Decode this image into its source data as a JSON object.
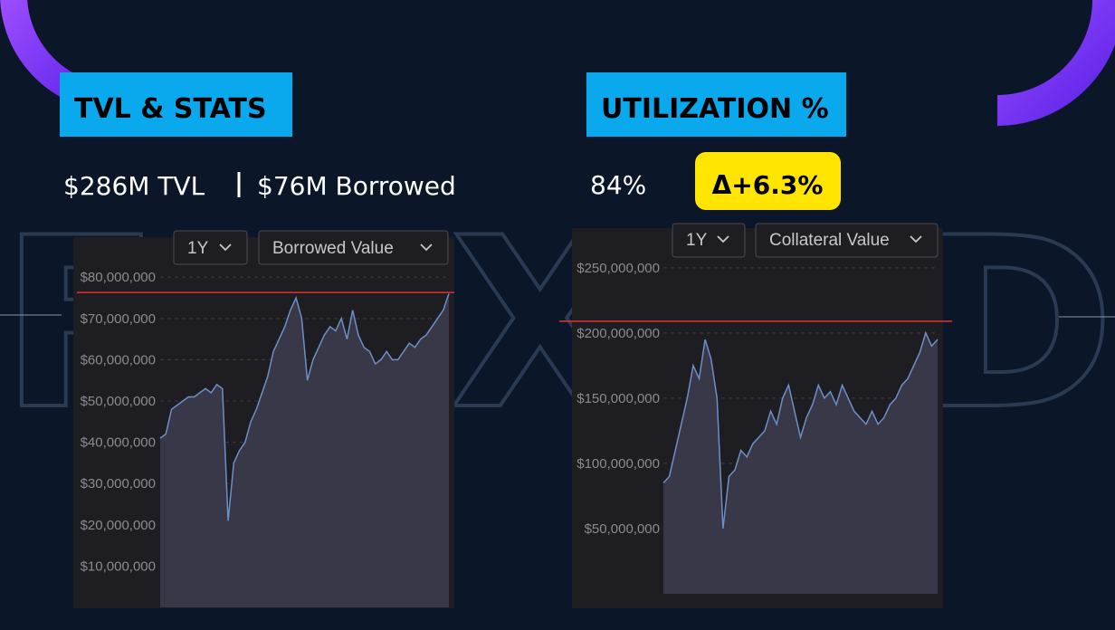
{
  "watermark": "FXD",
  "left": {
    "heading": "TVL & STATS",
    "stats": [
      "$286M TVL",
      "$76M Borrowed"
    ]
  },
  "right": {
    "heading": "UTILIZATION %",
    "stat": "84%",
    "badge": "Δ+6.3%"
  },
  "chart_data": [
    {
      "type": "area",
      "range": "1Y",
      "metric": "Borrowed Value",
      "color": "#6d8fc8",
      "ylim": [
        0,
        84000000
      ],
      "yticks": [
        {
          "value": 10000000,
          "label": "$10,000,000"
        },
        {
          "value": 20000000,
          "label": "$20,000,000"
        },
        {
          "value": 30000000,
          "label": "$30,000,000"
        },
        {
          "value": 40000000,
          "label": "$40,000,000"
        },
        {
          "value": 50000000,
          "label": "$50,000,000"
        },
        {
          "value": 60000000,
          "label": "$60,000,000"
        },
        {
          "value": 70000000,
          "label": "$70,000,000"
        },
        {
          "value": 80000000,
          "label": "$80,000,000"
        }
      ],
      "grid": true,
      "hline": 76300000,
      "hline_color": "#e0332f",
      "values": [
        41000000,
        42000000,
        48000000,
        49000000,
        50000000,
        51000000,
        51000000,
        52000000,
        53000000,
        52000000,
        54000000,
        53000000,
        21000000,
        35000000,
        38000000,
        40000000,
        45000000,
        48000000,
        52000000,
        56000000,
        62000000,
        65000000,
        68000000,
        72000000,
        75000000,
        70000000,
        55000000,
        60000000,
        63000000,
        66000000,
        68000000,
        67000000,
        70000000,
        65000000,
        72000000,
        66000000,
        63000000,
        62000000,
        59000000,
        60000000,
        62000000,
        60000000,
        60000000,
        62000000,
        64000000,
        63000000,
        65000000,
        66000000,
        68000000,
        70000000,
        72000000,
        76000000
      ]
    },
    {
      "type": "area",
      "range": "1Y",
      "metric": "Collateral Value",
      "color": "#6d8fc8",
      "ylim": [
        0,
        270000000
      ],
      "yticks": [
        {
          "value": 50000000,
          "label": "$50,000,000"
        },
        {
          "value": 100000000,
          "label": "$100,000,000"
        },
        {
          "value": 150000000,
          "label": "$150,000,000"
        },
        {
          "value": 200000000,
          "label": "$200,000,000"
        },
        {
          "value": 250000000,
          "label": "$250,000,000"
        }
      ],
      "grid": true,
      "hline": 209000000,
      "hline_color": "#e0332f",
      "values": [
        85000000,
        90000000,
        110000000,
        130000000,
        150000000,
        175000000,
        165000000,
        195000000,
        180000000,
        150000000,
        50000000,
        90000000,
        95000000,
        110000000,
        105000000,
        115000000,
        120000000,
        125000000,
        140000000,
        130000000,
        150000000,
        160000000,
        140000000,
        120000000,
        135000000,
        145000000,
        160000000,
        150000000,
        155000000,
        145000000,
        160000000,
        150000000,
        140000000,
        135000000,
        130000000,
        140000000,
        130000000,
        135000000,
        145000000,
        150000000,
        160000000,
        165000000,
        175000000,
        185000000,
        200000000,
        190000000,
        195000000
      ]
    }
  ]
}
